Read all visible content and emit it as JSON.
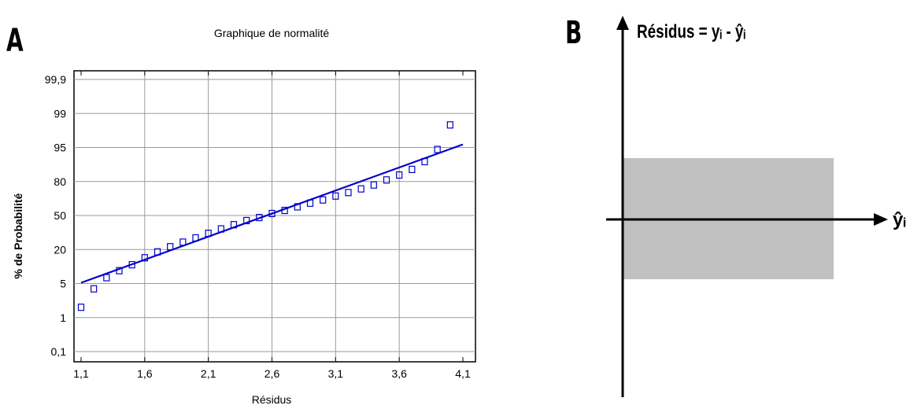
{
  "panels": {
    "a_label": "A",
    "b_label": "B"
  },
  "chart_data": [
    {
      "type": "scatter",
      "title": "Graphique de normalité",
      "xlabel": "Résidus",
      "ylabel": "% de Probabilité",
      "xlim": [
        1.05,
        4.15
      ],
      "x_ticks": [
        1.1,
        1.6,
        2.1,
        2.6,
        3.1,
        3.6,
        4.1
      ],
      "x_tick_labels": [
        "1,1",
        "1,6",
        "2,1",
        "2,6",
        "3,1",
        "3,6",
        "4,1"
      ],
      "y_scale": "normal-probability",
      "y_ticks": [
        0.1,
        1,
        5,
        20,
        50,
        80,
        95,
        99,
        99.9
      ],
      "y_tick_labels": [
        "0,1",
        "1",
        "5",
        "20",
        "50",
        "80",
        "95",
        "99",
        "99,9"
      ],
      "grid": true,
      "marker": "open-square",
      "color": "#0000cc",
      "points": [
        {
          "x": 1.1,
          "y": 1.7
        },
        {
          "x": 1.2,
          "y": 4.0
        },
        {
          "x": 1.3,
          "y": 6.6
        },
        {
          "x": 1.4,
          "y": 9.0
        },
        {
          "x": 1.5,
          "y": 11.5
        },
        {
          "x": 1.6,
          "y": 15.0
        },
        {
          "x": 1.7,
          "y": 18.5
        },
        {
          "x": 1.8,
          "y": 22.0
        },
        {
          "x": 1.9,
          "y": 25.5
        },
        {
          "x": 2.0,
          "y": 29.0
        },
        {
          "x": 2.1,
          "y": 33.0
        },
        {
          "x": 2.2,
          "y": 37.0
        },
        {
          "x": 2.3,
          "y": 41.0
        },
        {
          "x": 2.4,
          "y": 45.0
        },
        {
          "x": 2.5,
          "y": 48.0
        },
        {
          "x": 2.6,
          "y": 52.0
        },
        {
          "x": 2.7,
          "y": 55.0
        },
        {
          "x": 2.8,
          "y": 58.5
        },
        {
          "x": 2.9,
          "y": 62.0
        },
        {
          "x": 3.0,
          "y": 65.0
        },
        {
          "x": 3.1,
          "y": 68.5
        },
        {
          "x": 3.2,
          "y": 71.5
        },
        {
          "x": 3.3,
          "y": 74.5
        },
        {
          "x": 3.4,
          "y": 77.5
        },
        {
          "x": 3.5,
          "y": 81.0
        },
        {
          "x": 3.6,
          "y": 84.0
        },
        {
          "x": 3.7,
          "y": 87.0
        },
        {
          "x": 3.8,
          "y": 90.5
        },
        {
          "x": 3.9,
          "y": 94.5
        },
        {
          "x": 4.0,
          "y": 98.2
        }
      ],
      "fit_line": {
        "x": [
          1.1,
          4.1
        ],
        "y": [
          5.2,
          95.6
        ]
      }
    },
    {
      "type": "diagram",
      "ylabel": "Résidus = yᵢ - ŷᵢ",
      "xlabel": "ŷᵢ",
      "band_color": "#c0c0c0"
    }
  ]
}
